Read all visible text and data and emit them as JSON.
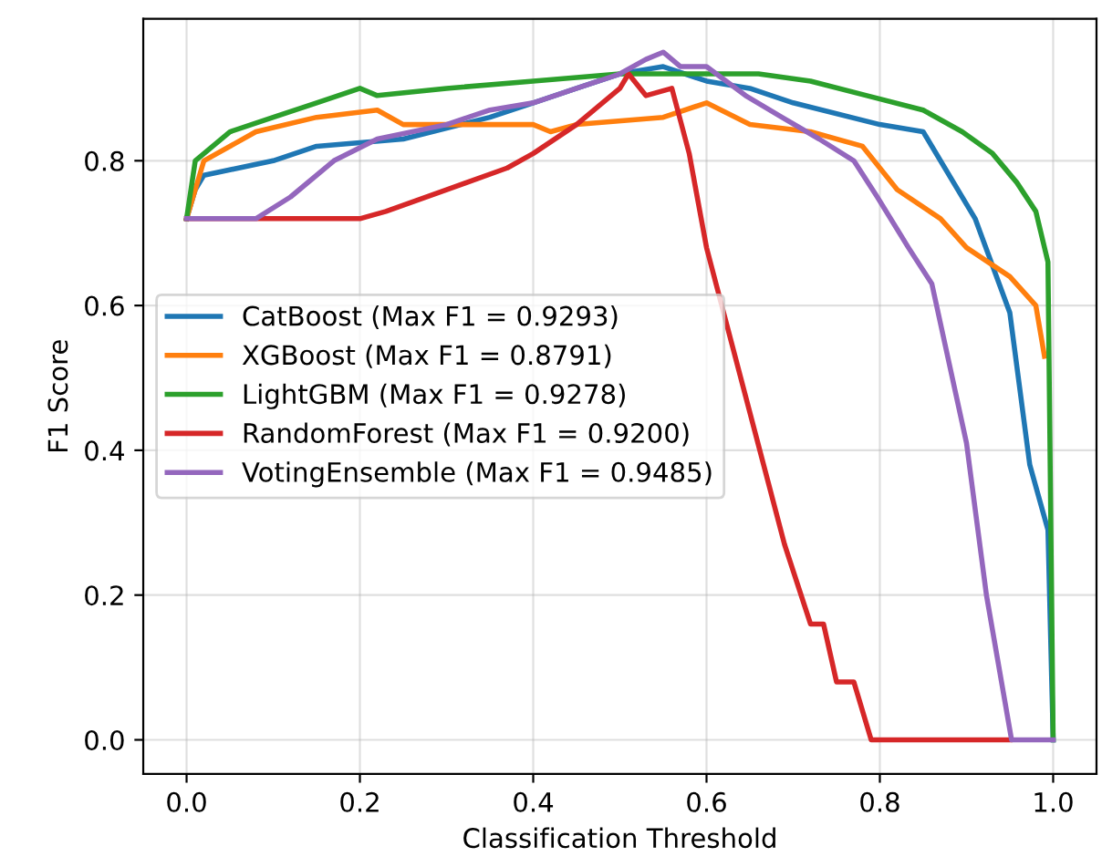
{
  "chart_data": {
    "type": "line",
    "xlabel": "Classification Threshold",
    "ylabel": "F1 Score",
    "xlim": [
      -0.05,
      1.05
    ],
    "xticks": [
      {
        "value": 0.0,
        "label": "0.0"
      },
      0.2,
      0.4,
      0.6,
      0.8,
      {
        "value": 1.0,
        "label": "1.0"
      }
    ],
    "ylim": [
      -0.047,
      0.996
    ],
    "yticks": [
      {
        "value": 0.0,
        "label": "0.0"
      },
      0.2,
      0.4,
      0.6,
      0.8
    ],
    "grid": true,
    "legend": "center left",
    "marker": "none",
    "line_style": "solid",
    "series": [
      {
        "name": "CatBoost (Max F1 = 0.9293)",
        "color": "#1f77b4",
        "x": [
          0,
          0.01,
          0.02,
          0.1,
          0.15,
          0.25,
          0.35,
          0.4,
          0.45,
          0.5,
          0.55,
          0.6,
          0.65,
          0.7,
          0.8,
          0.85,
          0.91,
          0.95,
          0.973,
          0.994,
          1.0
        ],
        "values": [
          0.72,
          0.76,
          0.78,
          0.8,
          0.82,
          0.83,
          0.86,
          0.88,
          0.9,
          0.92,
          0.93,
          0.91,
          0.9,
          0.88,
          0.85,
          0.84,
          0.72,
          0.59,
          0.38,
          0.29,
          0.0
        ]
      },
      {
        "name": "XGBoost (Max F1 = 0.8791)",
        "color": "#ff7f0e",
        "x": [
          0,
          0.02,
          0.08,
          0.15,
          0.22,
          0.25,
          0.4,
          0.42,
          0.45,
          0.55,
          0.6,
          0.65,
          0.72,
          0.78,
          0.82,
          0.87,
          0.9,
          0.95,
          0.98,
          0.99
        ],
        "values": [
          0.72,
          0.8,
          0.84,
          0.86,
          0.87,
          0.85,
          0.85,
          0.84,
          0.85,
          0.86,
          0.88,
          0.85,
          0.84,
          0.82,
          0.76,
          0.72,
          0.68,
          0.64,
          0.6,
          0.53
        ]
      },
      {
        "name": "LightGBM (Max F1 = 0.9278)",
        "color": "#2ca02c",
        "x": [
          0,
          0.01,
          0.05,
          0.1,
          0.15,
          0.2,
          0.22,
          0.3,
          0.4,
          0.5,
          0.6,
          0.66,
          0.72,
          0.785,
          0.85,
          0.895,
          0.93,
          0.958,
          0.98,
          0.994,
          1.0
        ],
        "values": [
          0.72,
          0.8,
          0.84,
          0.86,
          0.88,
          0.9,
          0.89,
          0.9,
          0.91,
          0.92,
          0.92,
          0.92,
          0.91,
          0.89,
          0.87,
          0.84,
          0.81,
          0.77,
          0.73,
          0.66,
          0.0
        ]
      },
      {
        "name": "RandomForest (Max F1 = 0.9200)",
        "color": "#d62728",
        "x": [
          0,
          0.2,
          0.23,
          0.3,
          0.37,
          0.4,
          0.45,
          0.5,
          0.51,
          0.53,
          0.56,
          0.58,
          0.6,
          0.69,
          0.72,
          0.735,
          0.75,
          0.77,
          0.79,
          0.95
        ],
        "values": [
          0.72,
          0.72,
          0.73,
          0.76,
          0.79,
          0.81,
          0.85,
          0.9,
          0.92,
          0.89,
          0.9,
          0.81,
          0.68,
          0.27,
          0.16,
          0.16,
          0.08,
          0.08,
          0.0,
          0.0
        ]
      },
      {
        "name": "VotingEnsemble (Max F1 = 0.9485)",
        "color": "#9467bd",
        "x": [
          0,
          0.08,
          0.12,
          0.17,
          0.22,
          0.3,
          0.35,
          0.4,
          0.45,
          0.5,
          0.53,
          0.55,
          0.57,
          0.6,
          0.645,
          0.687,
          0.73,
          0.77,
          0.797,
          0.833,
          0.86,
          0.9,
          0.923,
          0.952,
          1.0
        ],
        "values": [
          0.72,
          0.72,
          0.75,
          0.8,
          0.83,
          0.85,
          0.87,
          0.88,
          0.9,
          0.92,
          0.94,
          0.95,
          0.93,
          0.93,
          0.89,
          0.86,
          0.83,
          0.8,
          0.75,
          0.68,
          0.63,
          0.41,
          0.2,
          0.0,
          0.0
        ]
      }
    ]
  }
}
